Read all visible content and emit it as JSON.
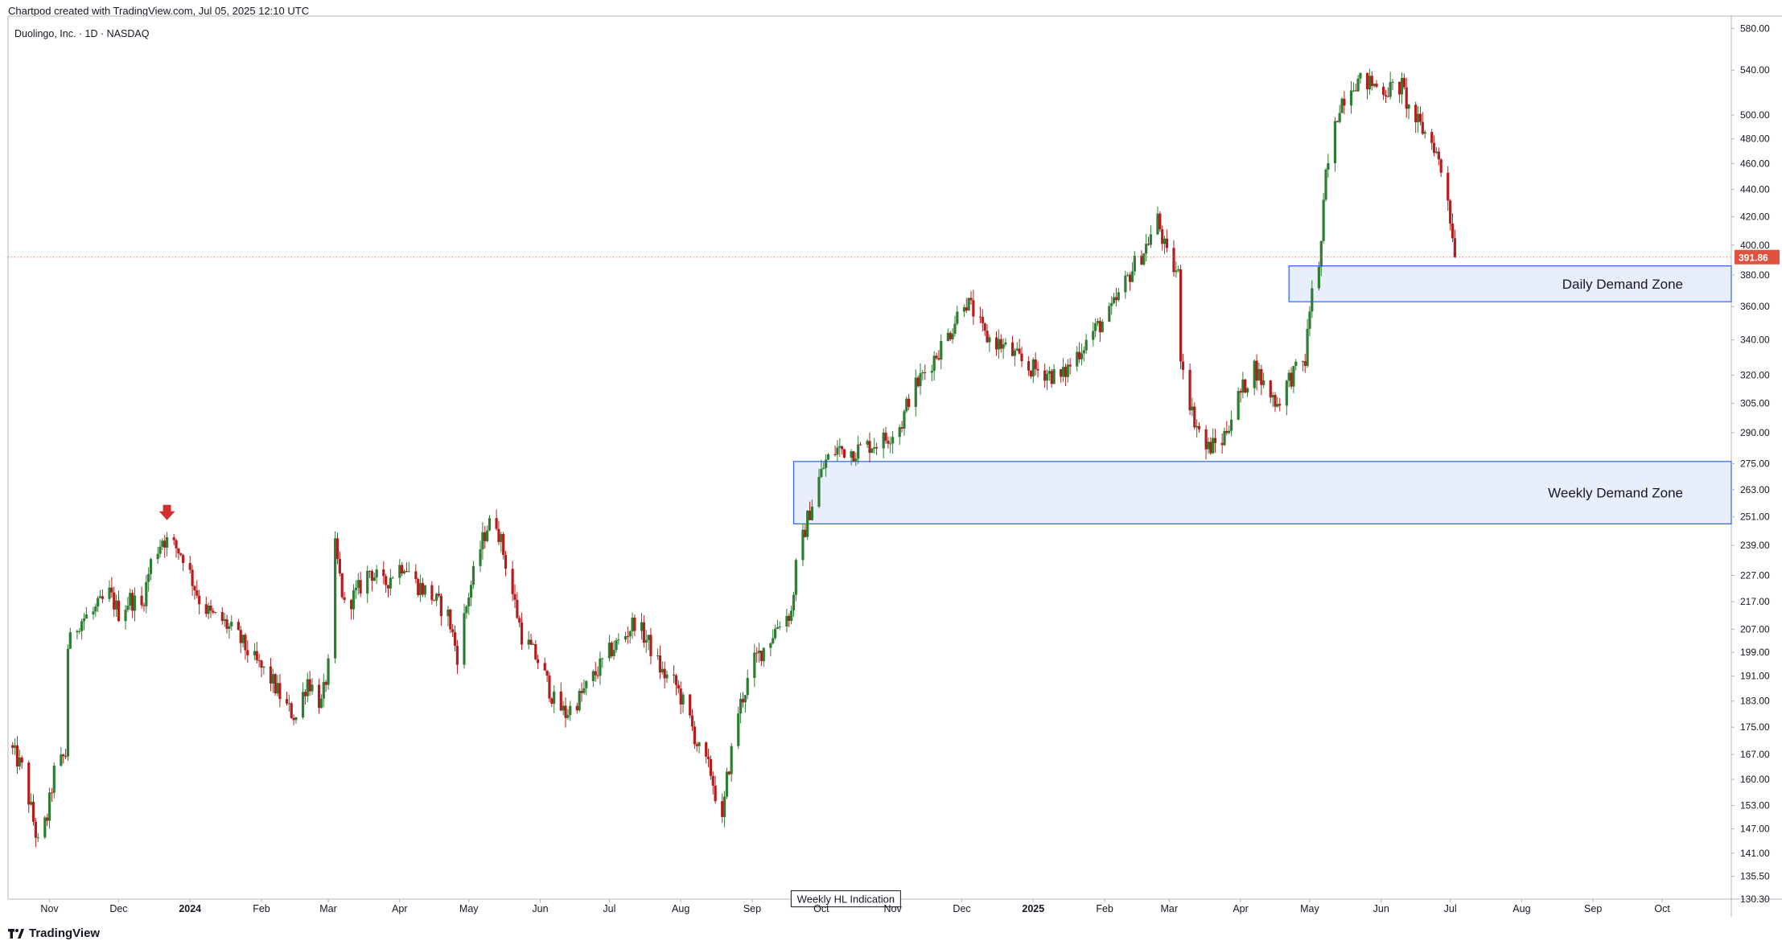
{
  "header": {
    "created_by": "Chartpod created with TradingView.com, Jul 05, 2025 12:10 UTC",
    "symbol_line": "Duolingo, Inc. · 1D · NASDAQ"
  },
  "footer": {
    "brand": "TradingView"
  },
  "colors": {
    "up": "#26a69a",
    "up_body": "#2e7d32",
    "down": "#b71c1c",
    "zone_fill": "#e8eefc",
    "zone_border": "#2962ff",
    "last_price": "#e0523e",
    "marker_arrow": "#d32f2f"
  },
  "chart_data": {
    "type": "candlestick",
    "scale": "log",
    "x_range": [
      "2023-10-14",
      "2025-10-31"
    ],
    "y_range": [
      130.3,
      590
    ],
    "last_price": 391.86,
    "y_ticks": [
      580,
      540,
      500,
      480,
      460,
      440,
      420,
      400,
      380,
      360,
      340,
      320,
      305,
      290,
      275,
      263,
      251,
      239,
      227,
      217,
      207,
      199,
      191,
      183,
      175,
      167,
      160,
      153,
      147,
      141,
      135.5,
      130.3
    ],
    "y_tick_labels": [
      "580.00",
      "540.00",
      "500.00",
      "480.00",
      "460.00",
      "440.00",
      "420.00",
      "400.00",
      "380.00",
      "360.00",
      "340.00",
      "320.00",
      "305.00",
      "290.00",
      "275.00",
      "263.00",
      "251.00",
      "239.00",
      "227.00",
      "217.00",
      "207.00",
      "199.00",
      "191.00",
      "183.00",
      "175.00",
      "167.00",
      "160.00",
      "153.00",
      "147.00",
      "141.00",
      "135.50",
      "130.30"
    ],
    "x_ticks": [
      {
        "label": "Nov",
        "date": "2023-11-01",
        "year": false
      },
      {
        "label": "Dec",
        "date": "2023-12-01",
        "year": false
      },
      {
        "label": "2024",
        "date": "2024-01-01",
        "year": true
      },
      {
        "label": "Feb",
        "date": "2024-02-01",
        "year": false
      },
      {
        "label": "Mar",
        "date": "2024-03-01",
        "year": false
      },
      {
        "label": "Apr",
        "date": "2024-04-01",
        "year": false
      },
      {
        "label": "May",
        "date": "2024-05-01",
        "year": false
      },
      {
        "label": "Jun",
        "date": "2024-06-01",
        "year": false
      },
      {
        "label": "Jul",
        "date": "2024-07-01",
        "year": false
      },
      {
        "label": "Aug",
        "date": "2024-08-01",
        "year": false
      },
      {
        "label": "Sep",
        "date": "2024-09-01",
        "year": false
      },
      {
        "label": "Oct",
        "date": "2024-10-01",
        "year": false
      },
      {
        "label": "Nov",
        "date": "2024-11-01",
        "year": false
      },
      {
        "label": "Dec",
        "date": "2024-12-01",
        "year": false
      },
      {
        "label": "2025",
        "date": "2025-01-01",
        "year": true
      },
      {
        "label": "Feb",
        "date": "2025-02-01",
        "year": false
      },
      {
        "label": "Mar",
        "date": "2025-03-01",
        "year": false
      },
      {
        "label": "Apr",
        "date": "2025-04-01",
        "year": false
      },
      {
        "label": "May",
        "date": "2025-05-01",
        "year": false
      },
      {
        "label": "Jun",
        "date": "2025-06-01",
        "year": false
      },
      {
        "label": "Jul",
        "date": "2025-07-01",
        "year": false
      },
      {
        "label": "Aug",
        "date": "2025-08-01",
        "year": false
      },
      {
        "label": "Sep",
        "date": "2025-09-01",
        "year": false
      },
      {
        "label": "Oct",
        "date": "2025-10-01",
        "year": false
      }
    ],
    "zones": [
      {
        "label": "Weekly Demand Zone",
        "start": "2024-09-19",
        "end": "2025-10-31",
        "low": 248,
        "high": 276
      },
      {
        "label": "Daily Demand Zone",
        "start": "2025-04-22",
        "end": "2025-10-31",
        "low": 363,
        "high": 386
      }
    ],
    "annotations": [
      {
        "type": "arrow_down",
        "date": "2023-12-22",
        "price": 252
      },
      {
        "type": "label",
        "text": "Weekly HL Indication",
        "date": "2024-09-20",
        "price": 132
      }
    ],
    "close_path": [
      [
        "2023-10-16",
        168
      ],
      [
        "2023-10-20",
        163
      ],
      [
        "2023-10-24",
        152
      ],
      [
        "2023-10-27",
        143
      ],
      [
        "2023-10-31",
        150
      ],
      [
        "2023-11-03",
        162
      ],
      [
        "2023-11-08",
        167
      ],
      [
        "2023-11-09",
        201
      ],
      [
        "2023-11-14",
        210
      ],
      [
        "2023-11-20",
        213
      ],
      [
        "2023-11-27",
        220
      ],
      [
        "2023-12-01",
        213
      ],
      [
        "2023-12-06",
        218
      ],
      [
        "2023-12-11",
        215
      ],
      [
        "2023-12-15",
        232
      ],
      [
        "2023-12-20",
        242
      ],
      [
        "2023-12-26",
        238
      ],
      [
        "2023-12-29",
        235
      ],
      [
        "2024-01-05",
        218
      ],
      [
        "2024-01-10",
        212
      ],
      [
        "2024-01-15",
        210
      ],
      [
        "2024-01-22",
        204
      ],
      [
        "2024-01-29",
        196
      ],
      [
        "2024-02-05",
        190
      ],
      [
        "2024-02-12",
        181
      ],
      [
        "2024-02-16",
        178
      ],
      [
        "2024-02-21",
        190
      ],
      [
        "2024-02-27",
        182
      ],
      [
        "2024-03-01",
        194
      ],
      [
        "2024-03-04",
        238
      ],
      [
        "2024-03-08",
        215
      ],
      [
        "2024-03-13",
        220
      ],
      [
        "2024-03-19",
        229
      ],
      [
        "2024-03-25",
        223
      ],
      [
        "2024-03-29",
        228
      ],
      [
        "2024-04-03",
        232
      ],
      [
        "2024-04-08",
        224
      ],
      [
        "2024-04-15",
        219
      ],
      [
        "2024-04-22",
        212
      ],
      [
        "2024-04-26",
        198
      ],
      [
        "2024-05-01",
        220
      ],
      [
        "2024-05-06",
        238
      ],
      [
        "2024-05-09",
        247
      ],
      [
        "2024-05-13",
        249
      ],
      [
        "2024-05-24",
        205
      ],
      [
        "2024-06-01",
        195
      ],
      [
        "2024-06-07",
        183
      ],
      [
        "2024-06-12",
        179
      ],
      [
        "2024-06-18",
        184
      ],
      [
        "2024-06-26",
        193
      ],
      [
        "2024-07-02",
        200
      ],
      [
        "2024-07-08",
        205
      ],
      [
        "2024-07-12",
        210
      ],
      [
        "2024-07-18",
        202
      ],
      [
        "2024-07-24",
        192
      ],
      [
        "2024-07-30",
        188
      ],
      [
        "2024-08-05",
        177
      ],
      [
        "2024-08-09",
        168
      ],
      [
        "2024-08-14",
        162
      ],
      [
        "2024-08-19",
        148
      ],
      [
        "2024-08-21",
        160
      ],
      [
        "2024-08-26",
        180
      ],
      [
        "2024-09-02",
        196
      ],
      [
        "2024-09-09",
        204
      ],
      [
        "2024-09-13",
        210
      ],
      [
        "2024-09-18",
        213
      ],
      [
        "2024-09-20",
        230
      ],
      [
        "2024-09-25",
        250
      ],
      [
        "2024-09-30",
        268
      ],
      [
        "2024-10-03",
        276
      ],
      [
        "2024-10-08",
        282
      ],
      [
        "2024-10-15",
        281
      ],
      [
        "2024-10-22",
        284
      ],
      [
        "2024-10-29",
        287
      ],
      [
        "2024-11-05",
        295
      ],
      [
        "2024-11-08",
        308
      ],
      [
        "2024-11-14",
        320
      ],
      [
        "2024-11-20",
        332
      ],
      [
        "2024-11-26",
        345
      ],
      [
        "2024-12-02",
        365
      ],
      [
        "2024-12-06",
        357
      ],
      [
        "2024-12-11",
        342
      ],
      [
        "2024-12-17",
        338
      ],
      [
        "2024-12-23",
        332
      ],
      [
        "2024-12-30",
        324
      ],
      [
        "2025-01-06",
        322
      ],
      [
        "2025-01-13",
        318
      ],
      [
        "2025-01-20",
        332
      ],
      [
        "2025-01-27",
        345
      ],
      [
        "2025-02-03",
        355
      ],
      [
        "2025-02-10",
        375
      ],
      [
        "2025-02-14",
        387
      ],
      [
        "2025-02-18",
        396
      ],
      [
        "2025-02-24",
        418
      ],
      [
        "2025-02-28",
        392
      ],
      [
        "2025-03-05",
        380
      ],
      [
        "2025-03-06",
        332
      ],
      [
        "2025-03-11",
        300
      ],
      [
        "2025-03-17",
        282
      ],
      [
        "2025-03-24",
        286
      ],
      [
        "2025-03-31",
        308
      ],
      [
        "2025-04-07",
        325
      ],
      [
        "2025-04-11",
        315
      ],
      [
        "2025-04-17",
        305
      ],
      [
        "2025-04-22",
        318
      ],
      [
        "2025-04-29",
        328
      ],
      [
        "2025-05-02",
        374
      ],
      [
        "2025-05-05",
        382
      ],
      [
        "2025-05-08",
        450
      ],
      [
        "2025-05-14",
        510
      ],
      [
        "2025-05-20",
        530
      ],
      [
        "2025-05-27",
        528
      ],
      [
        "2025-06-03",
        522
      ],
      [
        "2025-06-10",
        525
      ],
      [
        "2025-06-13",
        505
      ],
      [
        "2025-06-18",
        490
      ],
      [
        "2025-06-24",
        475
      ],
      [
        "2025-06-30",
        435
      ],
      [
        "2025-07-02",
        405
      ],
      [
        "2025-07-03",
        391.86
      ]
    ]
  }
}
